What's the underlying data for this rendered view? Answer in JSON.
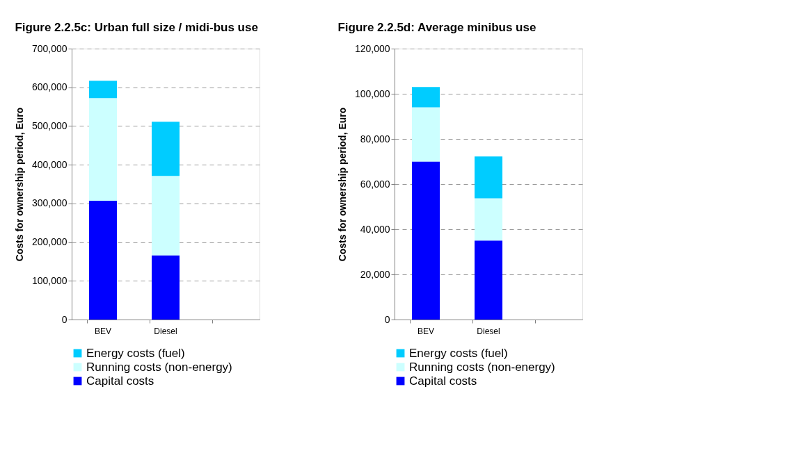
{
  "chart_data": [
    {
      "type": "bar",
      "title": "Figure 2.2.5c: Urban full size / midi-bus use",
      "ylabel": "Costs for ownership period, Euro",
      "categories": [
        "BEV",
        "Diesel",
        null
      ],
      "stacked": true,
      "series": [
        {
          "name": "Capital costs",
          "color": "#0000ff",
          "values": [
            307000,
            166000,
            null
          ]
        },
        {
          "name": "Running costs (non-energy)",
          "color": "#ccffff",
          "values": [
            265000,
            205000,
            null
          ]
        },
        {
          "name": "Energy costs (fuel)",
          "color": "#00ccff",
          "values": [
            45000,
            140000,
            null
          ]
        }
      ],
      "ylim": [
        0,
        700000
      ],
      "yticks": [
        {
          "value": 0,
          "label": "0"
        },
        {
          "value": 100000,
          "label": "100,000"
        },
        {
          "value": 200000,
          "label": "200,000"
        },
        {
          "value": 300000,
          "label": "300,000"
        },
        {
          "value": 400000,
          "label": "400,000"
        },
        {
          "value": 500000,
          "label": "500,000"
        },
        {
          "value": 600000,
          "label": "600,000"
        },
        {
          "value": 700000,
          "label": "700,000"
        }
      ],
      "grid": "y",
      "legend": "bottom"
    },
    {
      "type": "bar",
      "title": "Figure 2.2.5d: Average minibus use",
      "ylabel": "Costs for ownership period, Euro",
      "categories": [
        "BEV",
        "Diesel",
        null
      ],
      "stacked": true,
      "series": [
        {
          "name": "Capital costs",
          "color": "#0000ff",
          "values": [
            70000,
            35000,
            null
          ]
        },
        {
          "name": "Running costs (non-energy)",
          "color": "#ccffff",
          "values": [
            24000,
            18700,
            null
          ]
        },
        {
          "name": "Energy costs (fuel)",
          "color": "#00ccff",
          "values": [
            9000,
            18500,
            null
          ]
        }
      ],
      "ylim": [
        0,
        120000
      ],
      "yticks": [
        {
          "value": 0,
          "label": "0"
        },
        {
          "value": 20000,
          "label": "20,000"
        },
        {
          "value": 40000,
          "label": "40,000"
        },
        {
          "value": 60000,
          "label": "60,000"
        },
        {
          "value": 80000,
          "label": "80,000"
        },
        {
          "value": 100000,
          "label": "100,000"
        },
        {
          "value": 120000,
          "label": "120,000"
        }
      ],
      "grid": "y",
      "legend": "bottom"
    }
  ]
}
